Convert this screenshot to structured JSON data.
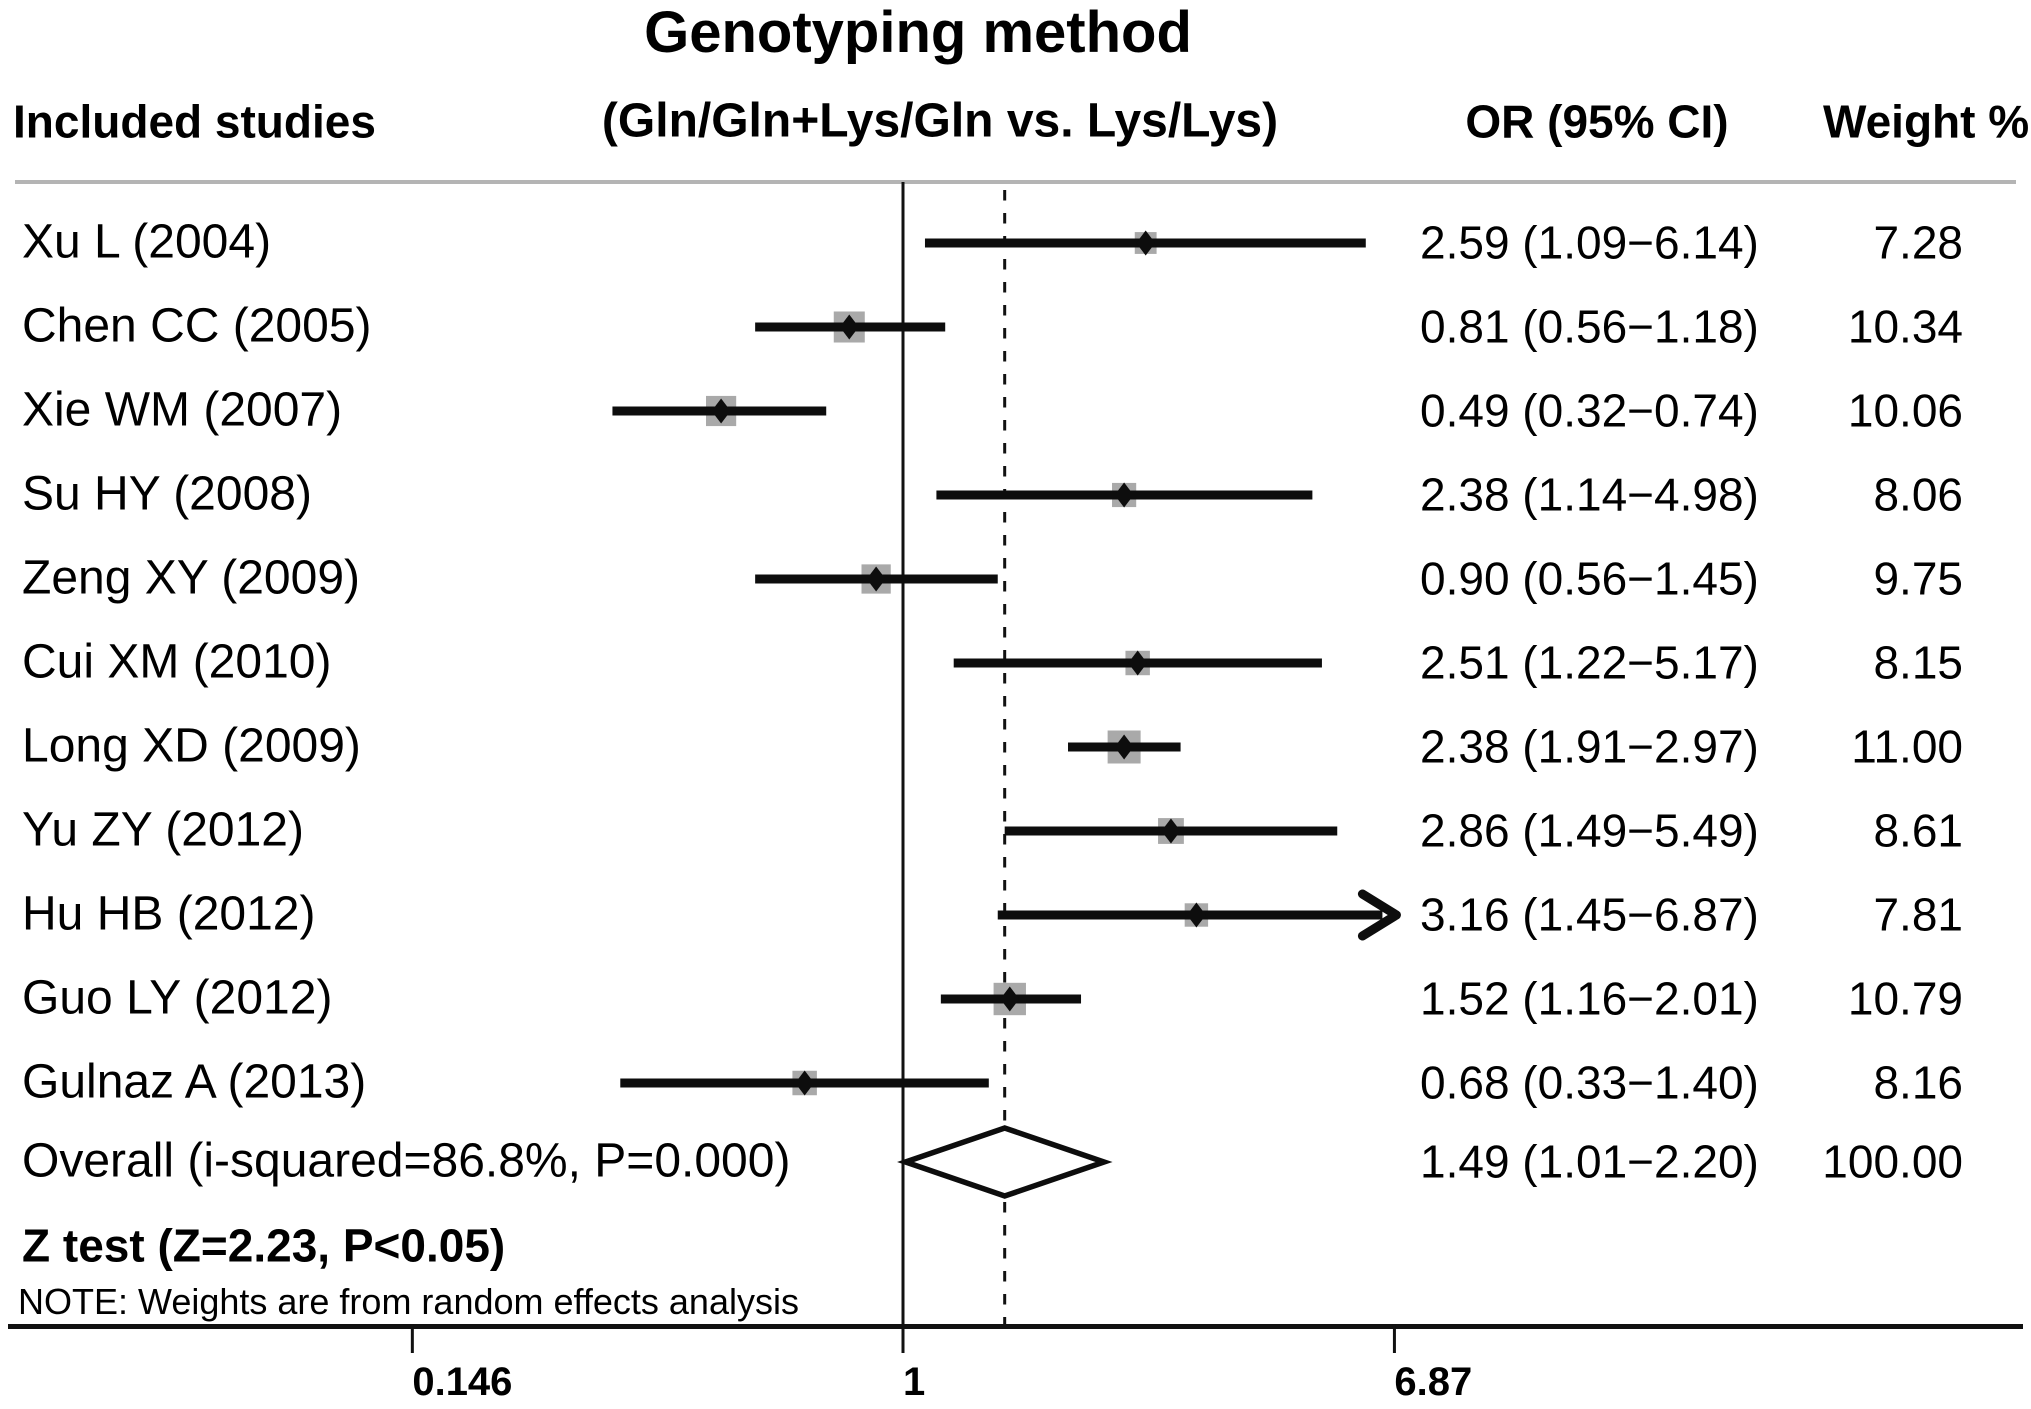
{
  "title": "Genotyping method",
  "subtitle": "(Gln/Gln+Lys/Gln vs. Lys/Lys)",
  "headers": {
    "studies": "Included studies",
    "or": "OR (95% CI)",
    "weight": "Weight %"
  },
  "chart_data": {
    "type": "forest",
    "x_scale": "log",
    "axis_ticks": [
      0.146,
      1,
      6.87
    ],
    "tick_labels": [
      "0.146",
      "1",
      "6.87"
    ],
    "null_line_value": 1,
    "overall_dashed_line_value": 1.49,
    "studies": [
      {
        "label": "Xu L (2004)",
        "or": 2.59,
        "ci_low": 1.09,
        "ci_high": 6.14,
        "or_text": "2.59 (1.09−6.14)",
        "weight": 7.28,
        "weight_text": "7.28",
        "arrow_high": false
      },
      {
        "label": "Chen CC (2005)",
        "or": 0.81,
        "ci_low": 0.56,
        "ci_high": 1.18,
        "or_text": "0.81 (0.56−1.18)",
        "weight": 10.34,
        "weight_text": "10.34",
        "arrow_high": false
      },
      {
        "label": "Xie WM (2007)",
        "or": 0.49,
        "ci_low": 0.32,
        "ci_high": 0.74,
        "or_text": "0.49 (0.32−0.74)",
        "weight": 10.06,
        "weight_text": "10.06",
        "arrow_high": false
      },
      {
        "label": "Su HY (2008)",
        "or": 2.38,
        "ci_low": 1.14,
        "ci_high": 4.98,
        "or_text": "2.38 (1.14−4.98)",
        "weight": 8.06,
        "weight_text": "8.06",
        "arrow_high": false
      },
      {
        "label": "Zeng XY (2009)",
        "or": 0.9,
        "ci_low": 0.56,
        "ci_high": 1.45,
        "or_text": "0.90 (0.56−1.45)",
        "weight": 9.75,
        "weight_text": "9.75",
        "arrow_high": false
      },
      {
        "label": "Cui XM (2010)",
        "or": 2.51,
        "ci_low": 1.22,
        "ci_high": 5.17,
        "or_text": "2.51 (1.22−5.17)",
        "weight": 8.15,
        "weight_text": "8.15",
        "arrow_high": false
      },
      {
        "label": "Long XD (2009)",
        "or": 2.38,
        "ci_low": 1.91,
        "ci_high": 2.97,
        "or_text": "2.38 (1.91−2.97)",
        "weight": 11.0,
        "weight_text": "11.00",
        "arrow_high": false
      },
      {
        "label": "Yu ZY (2012)",
        "or": 2.86,
        "ci_low": 1.49,
        "ci_high": 5.49,
        "or_text": "2.86 (1.49−5.49)",
        "weight": 8.61,
        "weight_text": "8.61",
        "arrow_high": false
      },
      {
        "label": "Hu HB (2012)",
        "or": 3.16,
        "ci_low": 1.45,
        "ci_high": 6.87,
        "or_text": "3.16 (1.45−6.87)",
        "weight": 7.81,
        "weight_text": "7.81",
        "arrow_high": true
      },
      {
        "label": "Guo LY (2012)",
        "or": 1.52,
        "ci_low": 1.16,
        "ci_high": 2.01,
        "or_text": "1.52 (1.16−2.01)",
        "weight": 10.79,
        "weight_text": "10.79",
        "arrow_high": false
      },
      {
        "label": "Gulnaz A (2013)",
        "or": 0.68,
        "ci_low": 0.33,
        "ci_high": 1.4,
        "or_text": "0.68 (0.33−1.40)",
        "weight": 8.16,
        "weight_text": "8.16",
        "arrow_high": false
      }
    ],
    "overall": {
      "label": "Overall (i-squared=86.8%, P=0.000)",
      "or": 1.49,
      "ci_low": 1.01,
      "ci_high": 2.2,
      "or_text": "1.49 (1.01−2.20)",
      "weight_text": "100.00"
    },
    "z_test": "Z test (Z=2.23, P<0.05)",
    "note": "NOTE: Weights are from random effects analysis",
    "colors": {
      "bar": "#0d0d0d",
      "weight_box": "#a9a9a9",
      "header_rule": "#b4b4b4",
      "axis": "#111111",
      "text": "#000000",
      "background": "#ffffff"
    },
    "legend_position": "none",
    "grid": false
  }
}
